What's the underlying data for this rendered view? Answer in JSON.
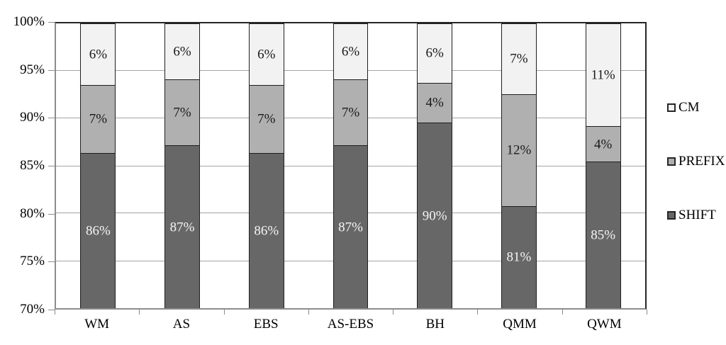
{
  "chart_data": {
    "type": "bar",
    "subtype": "stacked-column-100-clipped",
    "title": "",
    "xlabel": "",
    "ylabel": "",
    "categories": [
      "WM",
      "AS",
      "EBS",
      "AS-EBS",
      "BH",
      "QMM",
      "QWM"
    ],
    "series": [
      {
        "name": "SHIFT",
        "color": "#676767",
        "label_color": "#f5f5f5",
        "labels": [
          "86%",
          "87%",
          "86%",
          "87%",
          "90%",
          "81%",
          "85%"
        ],
        "values": [
          86.4,
          87.2,
          86.4,
          87.2,
          89.6,
          80.8,
          85.5
        ]
      },
      {
        "name": "PREFIX",
        "color": "#b0b0b0",
        "label_color": "#1a1a1a",
        "labels": [
          "7%",
          "7%",
          "7%",
          "7%",
          "4%",
          "12%",
          "4%"
        ],
        "values": [
          7.2,
          7.0,
          7.2,
          7.0,
          4.2,
          11.8,
          3.7
        ]
      },
      {
        "name": "CM",
        "color": "#f2f2f2",
        "label_color": "#1a1a1a",
        "labels": [
          "6%",
          "6%",
          "6%",
          "6%",
          "6%",
          "7%",
          "11%"
        ],
        "values": [
          6.4,
          5.8,
          6.4,
          5.8,
          6.2,
          7.4,
          10.8
        ]
      }
    ],
    "y_axis": {
      "min": 70,
      "max": 100,
      "tick_step": 5,
      "tick_labels": [
        "100%",
        "95%",
        "90%",
        "85%",
        "80%",
        "75%",
        "70%"
      ]
    },
    "legend": {
      "position": "right",
      "entries": [
        "CM",
        "PREFIX",
        "SHIFT"
      ]
    },
    "grid": true
  }
}
